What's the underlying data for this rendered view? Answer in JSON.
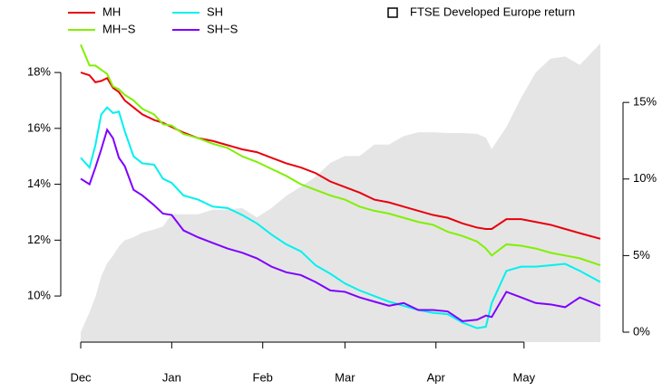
{
  "chart_data": {
    "type": "line",
    "x": [
      0,
      3,
      5,
      7,
      9,
      11,
      13,
      15,
      18,
      21,
      25,
      28,
      31,
      35,
      40,
      45,
      50,
      55,
      60,
      65,
      70,
      75,
      80,
      85,
      90,
      95,
      100,
      105,
      110,
      115,
      120,
      125,
      130,
      135,
      138,
      140,
      145,
      150,
      155,
      160,
      165,
      170,
      177
    ],
    "xlim": [
      0,
      177
    ],
    "xticks": [
      {
        "value": 0,
        "label": "Dec"
      },
      {
        "value": 31,
        "label": "Jan"
      },
      {
        "value": 62,
        "label": "Feb"
      },
      {
        "value": 90,
        "label": "Mar"
      },
      {
        "value": 121,
        "label": "Apr"
      },
      {
        "value": 151,
        "label": "May"
      }
    ],
    "ylim": [
      8.35,
      19.04
    ],
    "yticks": [
      {
        "value": 10,
        "label": "10%"
      },
      {
        "value": 12,
        "label": "12%"
      },
      {
        "value": 14,
        "label": "14%"
      },
      {
        "value": 16,
        "label": "16%"
      },
      {
        "value": 18,
        "label": "18%"
      }
    ],
    "y2lim": [
      -0.65,
      18.85
    ],
    "y2ticks": [
      {
        "value": 0,
        "label": "0%"
      },
      {
        "value": 5,
        "label": "5%"
      },
      {
        "value": 10,
        "label": "10%"
      },
      {
        "value": 15,
        "label": "15%"
      }
    ],
    "series": [
      {
        "name": "FTSE Developed Europe return",
        "type": "area",
        "axis": "y2",
        "color": "#e5e5e5",
        "values": [
          0,
          1.3,
          2.3,
          3.65,
          4.5,
          5.0,
          5.6,
          6.0,
          6.2,
          6.5,
          6.7,
          6.9,
          7.7,
          7.7,
          7.7,
          8.0,
          8.0,
          8.1,
          7.5,
          8.1,
          8.9,
          9.5,
          10.15,
          11.05,
          11.5,
          11.5,
          12.25,
          12.25,
          12.8,
          13.05,
          13.05,
          13.0,
          13.0,
          12.95,
          12.7,
          11.95,
          13.4,
          15.3,
          16.95,
          17.85,
          18.0,
          17.45,
          18.85
        ]
      },
      {
        "name": "MH",
        "color": "#e8000b",
        "values": [
          18.0,
          17.9,
          17.65,
          17.7,
          17.8,
          17.45,
          17.3,
          17.0,
          16.75,
          16.5,
          16.3,
          16.2,
          16.05,
          15.85,
          15.65,
          15.55,
          15.4,
          15.25,
          15.15,
          14.95,
          14.75,
          14.6,
          14.4,
          14.1,
          13.9,
          13.7,
          13.45,
          13.35,
          13.2,
          13.05,
          12.9,
          12.8,
          12.6,
          12.45,
          12.4,
          12.4,
          12.75,
          12.75,
          12.65,
          12.55,
          12.4,
          12.25,
          12.05
        ]
      },
      {
        "name": "MH−S",
        "color": "#80f000",
        "values": [
          19.0,
          18.25,
          18.25,
          18.1,
          17.95,
          17.5,
          17.4,
          17.2,
          17.0,
          16.7,
          16.5,
          16.15,
          16.1,
          15.8,
          15.65,
          15.45,
          15.3,
          15.0,
          14.8,
          14.55,
          14.3,
          14.0,
          13.8,
          13.6,
          13.45,
          13.2,
          13.05,
          12.95,
          12.8,
          12.65,
          12.55,
          12.3,
          12.15,
          11.95,
          11.7,
          11.45,
          11.85,
          11.8,
          11.7,
          11.55,
          11.45,
          11.35,
          11.1
        ]
      },
      {
        "name": "SH",
        "color": "#00f0f0",
        "values": [
          14.95,
          14.6,
          15.4,
          16.5,
          16.75,
          16.55,
          16.6,
          15.9,
          15.0,
          14.75,
          14.7,
          14.2,
          14.05,
          13.6,
          13.45,
          13.2,
          13.15,
          12.9,
          12.6,
          12.2,
          11.85,
          11.6,
          11.1,
          10.8,
          10.45,
          10.2,
          10.0,
          9.8,
          9.65,
          9.5,
          9.4,
          9.35,
          9.05,
          8.85,
          8.9,
          9.75,
          10.9,
          11.05,
          11.05,
          11.1,
          11.15,
          10.9,
          10.5
        ]
      },
      {
        "name": "SH−S",
        "color": "#7f00ff",
        "values": [
          14.2,
          14.0,
          14.6,
          15.25,
          15.95,
          15.65,
          14.95,
          14.65,
          13.8,
          13.6,
          13.25,
          12.95,
          12.9,
          12.35,
          12.1,
          11.9,
          11.7,
          11.55,
          11.35,
          11.05,
          10.85,
          10.75,
          10.5,
          10.2,
          10.15,
          9.95,
          9.8,
          9.65,
          9.75,
          9.5,
          9.5,
          9.45,
          9.1,
          9.15,
          9.3,
          9.25,
          10.15,
          9.95,
          9.75,
          9.7,
          9.6,
          9.95,
          9.65
        ]
      }
    ]
  }
}
